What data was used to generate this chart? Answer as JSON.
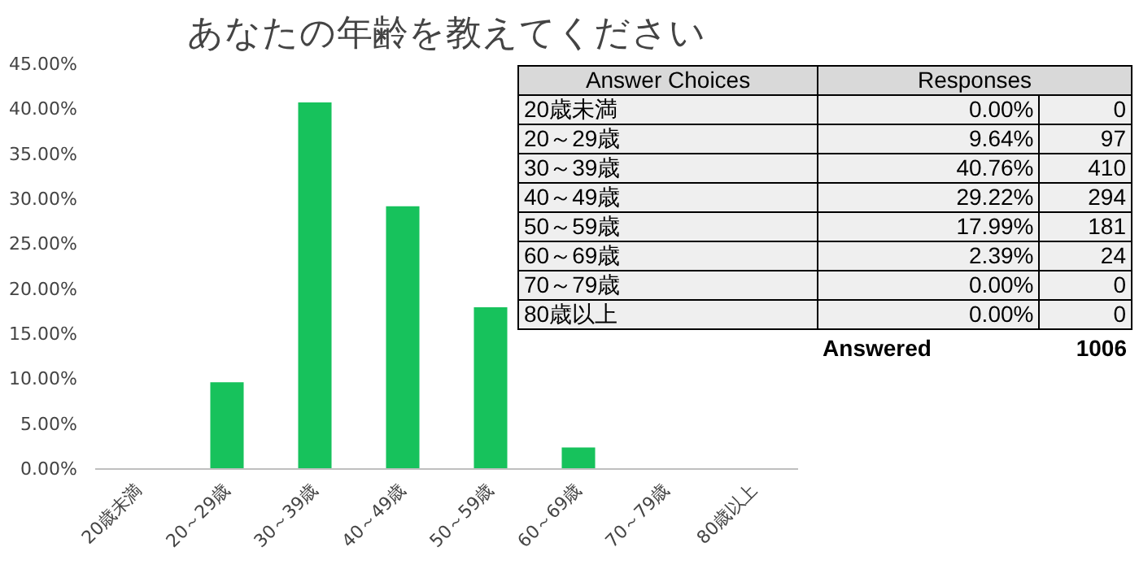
{
  "chart_data": [
    {
      "type": "bar",
      "title": "あなたの年齢を教えてください",
      "categories": [
        "20歳未満",
        "20～29歳",
        "30～39歳",
        "40～49歳",
        "50～59歳",
        "60～69歳",
        "70～79歳",
        "80歳以上"
      ],
      "values": [
        0,
        9.64,
        40.76,
        29.22,
        17.99,
        2.39,
        0,
        0
      ],
      "color": "#17c25c",
      "ylim": [
        0,
        45
      ],
      "yticks": [
        {
          "value": 0,
          "label": "0.00%"
        },
        {
          "value": 5,
          "label": "5.00%"
        },
        {
          "value": 10,
          "label": "10.00%"
        },
        {
          "value": 15,
          "label": "15.00%"
        },
        {
          "value": 20,
          "label": "20.00%"
        },
        {
          "value": 25,
          "label": "25.00%"
        },
        {
          "value": 30,
          "label": "30.00%"
        },
        {
          "value": 35,
          "label": "35.00%"
        },
        {
          "value": 40,
          "label": "40.00%"
        },
        {
          "value": 45,
          "label": "45.00%"
        }
      ],
      "grid": false
    },
    {
      "type": "other",
      "annotations": [
        "Answer Choices",
        "Responses",
        "20歳未満",
        "0.00%",
        "0",
        "20～29歳",
        "9.64%",
        "97",
        "30～39歳",
        "40.76%",
        "410",
        "40～49歳",
        "29.22%",
        "294",
        "50～59歳",
        "17.99%",
        "181",
        "60～69歳",
        "2.39%",
        "24",
        "70～79歳",
        "0.00%",
        "0",
        "80歳以上",
        "0.00%",
        "0",
        "Answered",
        "1006"
      ]
    }
  ]
}
